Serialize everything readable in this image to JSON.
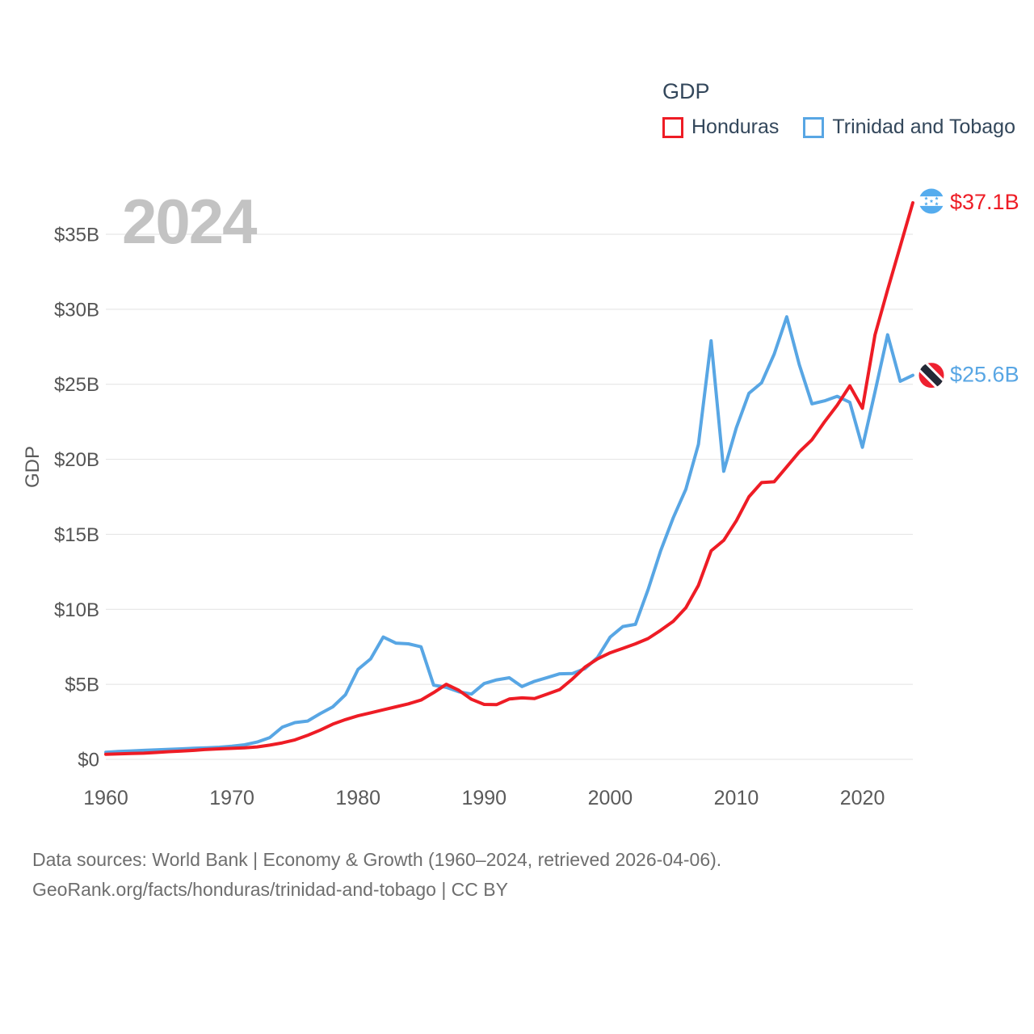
{
  "legend": {
    "title": "GDP",
    "series": [
      {
        "label": "Honduras",
        "color": "#EE1C25"
      },
      {
        "label": "Trinidad and Tobago",
        "color": "#58A6E4"
      }
    ]
  },
  "watermark": "2024",
  "source": {
    "line1": "Data sources: World Bank | Economy & Growth (1960–2024, retrieved 2026-04-06).",
    "line2": "GeoRank.org/facts/honduras/trinidad-and-tobago | CC BY"
  },
  "chart_data": {
    "type": "line",
    "title": "GDP",
    "ylabel": "GDP",
    "xlim": [
      1960,
      2024
    ],
    "ylim": [
      0,
      37.5
    ],
    "grid": true,
    "legend_position": "top-right",
    "xticks": [
      1960,
      1970,
      1980,
      1990,
      2000,
      2010,
      2020
    ],
    "yticks": [
      {
        "label": "$0",
        "value": 0
      },
      {
        "label": "$5B",
        "value": 5
      },
      {
        "label": "$10B",
        "value": 10
      },
      {
        "label": "$15B",
        "value": 15
      },
      {
        "label": "$20B",
        "value": 20
      },
      {
        "label": "$25B",
        "value": 25
      },
      {
        "label": "$30B",
        "value": 30
      },
      {
        "label": "$35B",
        "value": 35
      }
    ],
    "x": [
      1960,
      1961,
      1962,
      1963,
      1964,
      1965,
      1966,
      1967,
      1968,
      1969,
      1970,
      1971,
      1972,
      1973,
      1974,
      1975,
      1976,
      1977,
      1978,
      1979,
      1980,
      1981,
      1982,
      1983,
      1984,
      1985,
      1986,
      1987,
      1988,
      1989,
      1990,
      1991,
      1992,
      1993,
      1994,
      1995,
      1996,
      1997,
      1998,
      1999,
      2000,
      2001,
      2002,
      2003,
      2004,
      2005,
      2006,
      2007,
      2008,
      2009,
      2010,
      2011,
      2012,
      2013,
      2014,
      2015,
      2016,
      2017,
      2018,
      2019,
      2020,
      2021,
      2022,
      2023,
      2024
    ],
    "series": [
      {
        "name": "Honduras",
        "color": "#EE1C25",
        "flag": "hn",
        "end_label": "$37.1B",
        "values": [
          0.34,
          0.36,
          0.39,
          0.41,
          0.46,
          0.51,
          0.55,
          0.6,
          0.66,
          0.7,
          0.73,
          0.77,
          0.83,
          0.95,
          1.1,
          1.3,
          1.6,
          1.95,
          2.35,
          2.65,
          2.9,
          3.1,
          3.3,
          3.5,
          3.7,
          3.95,
          4.45,
          5.0,
          4.6,
          4.0,
          3.66,
          3.65,
          4.02,
          4.1,
          4.05,
          4.35,
          4.65,
          5.35,
          6.15,
          6.7,
          7.1,
          7.4,
          7.7,
          8.05,
          8.6,
          9.2,
          10.1,
          11.6,
          13.9,
          14.6,
          15.9,
          17.5,
          18.45,
          18.5,
          19.5,
          20.5,
          21.3,
          22.5,
          23.6,
          24.9,
          23.4,
          28.3,
          31.3,
          34.2,
          37.1
        ]
      },
      {
        "name": "Trinidad and Tobago",
        "color": "#58A6E4",
        "flag": "tt",
        "end_label": "$25.6B",
        "values": [
          0.47,
          0.52,
          0.56,
          0.6,
          0.63,
          0.67,
          0.7,
          0.74,
          0.77,
          0.81,
          0.88,
          0.97,
          1.15,
          1.45,
          2.15,
          2.45,
          2.55,
          3.05,
          3.5,
          4.3,
          6.0,
          6.7,
          8.15,
          7.75,
          7.7,
          7.5,
          4.95,
          4.8,
          4.5,
          4.35,
          5.05,
          5.3,
          5.44,
          4.85,
          5.2,
          5.45,
          5.7,
          5.72,
          6.05,
          6.8,
          8.15,
          8.85,
          9.0,
          11.3,
          13.9,
          16.1,
          18.0,
          21.0,
          27.9,
          19.2,
          22.1,
          24.4,
          25.1,
          27.0,
          29.5,
          26.3,
          23.7,
          23.9,
          24.2,
          23.8,
          20.8,
          24.5,
          28.3,
          25.2,
          25.6
        ]
      }
    ]
  }
}
